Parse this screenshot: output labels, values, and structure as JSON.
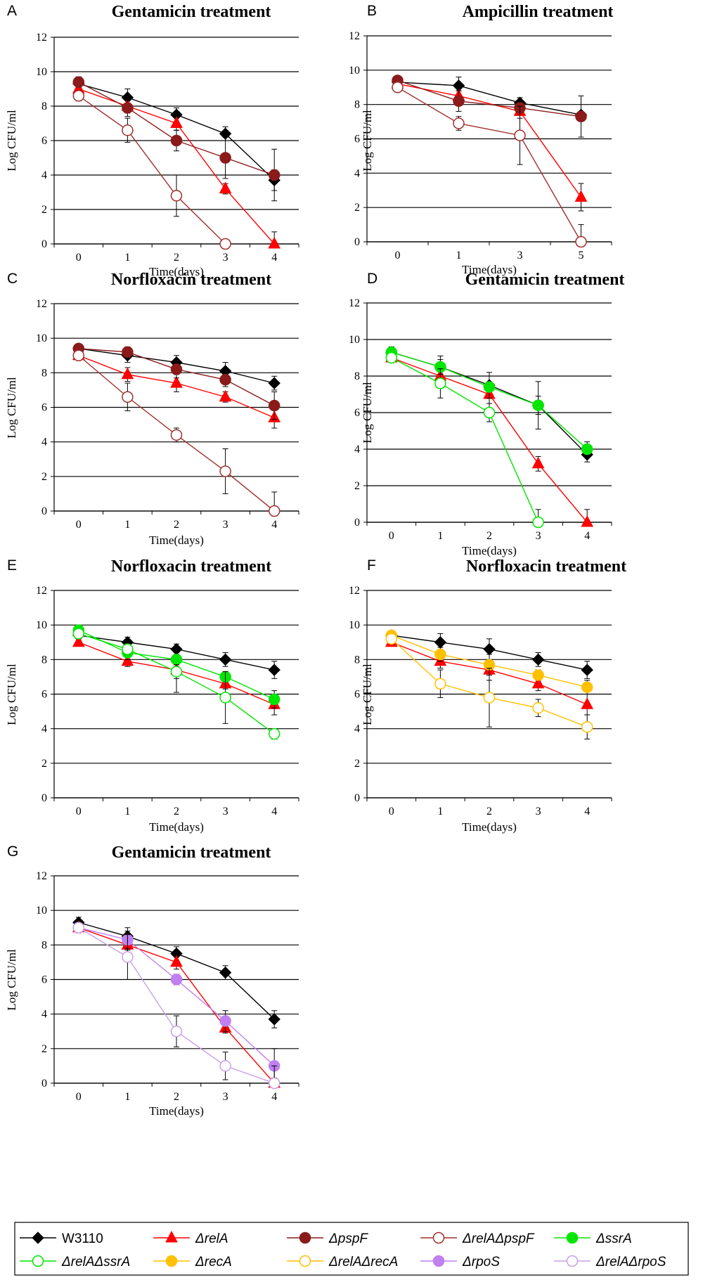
{
  "colors": {
    "W3110": "#000000",
    "relA": "#ff0000",
    "pspF": "#8b1a1a",
    "relApspF": "#a0302e",
    "ssrA": "#00e600",
    "relAssrA": "#00e600",
    "recA": "#ffc000",
    "relArecA": "#ffc000",
    "rpoS": "#c080f0",
    "relArpoS": "#c8a0ea"
  },
  "legend": {
    "items": [
      {
        "key": "W3110",
        "label": "W3110",
        "marker": "diamond",
        "filled": true
      },
      {
        "key": "relA",
        "label": "ΔrelA",
        "marker": "triangle",
        "filled": true
      },
      {
        "key": "pspF",
        "label": "ΔpspF",
        "marker": "circle",
        "filled": true
      },
      {
        "key": "relApspF",
        "label": "ΔrelAΔpspF",
        "marker": "circle",
        "filled": false
      },
      {
        "key": "ssrA",
        "label": "ΔssrA",
        "marker": "circle",
        "filled": true
      },
      {
        "key": "relAssrA",
        "label": "ΔrelAΔssrA",
        "marker": "circle",
        "filled": false
      },
      {
        "key": "recA",
        "label": "ΔrecA",
        "marker": "circle",
        "filled": true
      },
      {
        "key": "relArecA",
        "label": "ΔrelAΔrecA",
        "marker": "circle",
        "filled": false
      },
      {
        "key": "rpoS",
        "label": "ΔrpoS",
        "marker": "circle",
        "filled": true
      },
      {
        "key": "relArpoS",
        "label": "ΔrelAΔrpoS",
        "marker": "circle",
        "filled": false
      }
    ]
  },
  "chart_data": [
    {
      "panel": "A",
      "type": "line",
      "title": "Gentamicin treatment",
      "xlabel": "Time(days)",
      "ylabel": "Log CFU/ml",
      "categories": [
        "0",
        "1",
        "2",
        "3",
        "4"
      ],
      "ylim": [
        0,
        12
      ],
      "yticks": [
        0,
        2,
        4,
        6,
        8,
        10,
        12
      ],
      "series": [
        {
          "key": "W3110",
          "values": [
            9.3,
            8.5,
            7.5,
            6.4,
            3.7
          ],
          "err": [
            0.4,
            0.5,
            0.4,
            0.4,
            0.6
          ]
        },
        {
          "key": "relA",
          "values": [
            9.0,
            8.0,
            7.0,
            3.2,
            0.0
          ],
          "err": [
            0.3,
            0.4,
            0.4,
            0.3,
            0.7
          ]
        },
        {
          "key": "pspF",
          "values": [
            9.4,
            7.9,
            6.0,
            5.0,
            4.0
          ],
          "err": [
            0.3,
            0.5,
            0.6,
            1.2,
            1.5
          ]
        },
        {
          "key": "relApspF",
          "values": [
            8.6,
            6.6,
            2.8,
            0.0,
            null
          ],
          "err": [
            0.3,
            0.7,
            1.2,
            0,
            0
          ]
        }
      ]
    },
    {
      "panel": "B",
      "type": "line",
      "title": "Ampicillin treatment",
      "xlabel": "Time(days)",
      "ylabel": "Log CFU/ml",
      "categories": [
        "0",
        "1",
        "3",
        "5"
      ],
      "ylim": [
        0,
        12
      ],
      "yticks": [
        0,
        2,
        4,
        6,
        8,
        10,
        12
      ],
      "series": [
        {
          "key": "W3110",
          "values": [
            9.3,
            9.1,
            8.1,
            7.4
          ],
          "err": [
            0.2,
            0.5,
            0.3,
            0.2
          ]
        },
        {
          "key": "relA",
          "values": [
            9.2,
            8.5,
            7.6,
            2.6
          ],
          "err": [
            0.2,
            0.3,
            0.4,
            0.8
          ]
        },
        {
          "key": "pspF",
          "values": [
            9.4,
            8.2,
            7.8,
            7.3
          ],
          "err": [
            0.2,
            0.6,
            0.3,
            1.2
          ]
        },
        {
          "key": "relApspF",
          "values": [
            9.0,
            6.9,
            6.2,
            0.0
          ],
          "err": [
            0.2,
            0.4,
            1.7,
            1.0
          ]
        }
      ]
    },
    {
      "panel": "C",
      "type": "line",
      "title": "Norfloxacin treatment",
      "xlabel": "Time(days)",
      "ylabel": "Log CFU/ml",
      "categories": [
        "0",
        "1",
        "2",
        "3",
        "4"
      ],
      "ylim": [
        0,
        12
      ],
      "yticks": [
        0,
        2,
        4,
        6,
        8,
        10,
        12
      ],
      "series": [
        {
          "key": "W3110",
          "values": [
            9.4,
            9.0,
            8.6,
            8.1,
            7.4
          ],
          "err": [
            0.2,
            0.4,
            0.4,
            0.5,
            0.4
          ]
        },
        {
          "key": "relA",
          "values": [
            9.0,
            7.9,
            7.4,
            6.6,
            5.4
          ],
          "err": [
            0.2,
            0.4,
            0.5,
            0.3,
            0.6
          ]
        },
        {
          "key": "pspF",
          "values": [
            9.4,
            9.2,
            8.2,
            7.6,
            6.1
          ],
          "err": [
            0.2,
            0.3,
            0.5,
            0.4,
            0.8
          ]
        },
        {
          "key": "relApspF",
          "values": [
            9.0,
            6.6,
            4.4,
            2.3,
            0.0
          ],
          "err": [
            0.2,
            0.8,
            0.4,
            1.3,
            1.1
          ]
        }
      ]
    },
    {
      "panel": "D",
      "type": "line",
      "title": "Gentamicin treatment",
      "xlabel": "Time(days)",
      "ylabel": "Log CFU/ml",
      "categories": [
        "0",
        "1",
        "2",
        "3",
        "4"
      ],
      "ylim": [
        0,
        12
      ],
      "yticks": [
        0,
        2,
        4,
        6,
        8,
        10,
        12
      ],
      "series": [
        {
          "key": "W3110",
          "values": [
            9.3,
            8.5,
            7.5,
            6.4,
            3.7
          ],
          "err": [
            0.3,
            0.6,
            0.7,
            1.3,
            0.4
          ]
        },
        {
          "key": "relA",
          "values": [
            9.0,
            8.0,
            7.0,
            3.2,
            0.0
          ],
          "err": [
            0.2,
            0.3,
            0.5,
            0.4,
            0.7
          ]
        },
        {
          "key": "ssrA",
          "values": [
            9.3,
            8.5,
            7.4,
            6.4,
            4.0
          ],
          "err": [
            0.2,
            0.4,
            0.6,
            0.5,
            0.4
          ]
        },
        {
          "key": "relAssrA",
          "values": [
            9.0,
            7.6,
            6.0,
            0.0,
            null
          ],
          "err": [
            0.2,
            0.8,
            0.5,
            0.7,
            0
          ]
        }
      ]
    },
    {
      "panel": "E",
      "type": "line",
      "title": "Norfloxacin treatment",
      "xlabel": "Time(days)",
      "ylabel": "Log CFU/ml",
      "categories": [
        "0",
        "1",
        "2",
        "3",
        "4"
      ],
      "ylim": [
        0,
        12
      ],
      "yticks": [
        0,
        2,
        4,
        6,
        8,
        10,
        12
      ],
      "series": [
        {
          "key": "W3110",
          "values": [
            9.4,
            9.0,
            8.6,
            8.0,
            7.4
          ],
          "err": [
            0.2,
            0.3,
            0.3,
            0.4,
            0.5
          ]
        },
        {
          "key": "relA",
          "values": [
            9.0,
            7.9,
            7.4,
            6.6,
            5.4
          ],
          "err": [
            0.2,
            0.3,
            1.3,
            0.3,
            0.6
          ]
        },
        {
          "key": "ssrA",
          "values": [
            9.7,
            8.4,
            8.0,
            7.0,
            5.7
          ],
          "err": [
            0.2,
            0.4,
            0.4,
            0.3,
            0.5
          ]
        },
        {
          "key": "relAssrA",
          "values": [
            9.5,
            8.6,
            7.3,
            5.8,
            3.7
          ],
          "err": [
            0.2,
            0.3,
            0.4,
            1.5,
            0.3
          ]
        }
      ]
    },
    {
      "panel": "F",
      "type": "line",
      "title": "Norfloxacin treatment",
      "xlabel": "Time(days)",
      "ylabel": "Log CFU/ml",
      "categories": [
        "0",
        "1",
        "2",
        "3",
        "4"
      ],
      "ylim": [
        0,
        12
      ],
      "yticks": [
        0,
        2,
        4,
        6,
        8,
        10,
        12
      ],
      "series": [
        {
          "key": "W3110",
          "values": [
            9.4,
            9.0,
            8.6,
            8.0,
            7.4
          ],
          "err": [
            0.2,
            0.5,
            0.6,
            0.4,
            0.5
          ]
        },
        {
          "key": "relA",
          "values": [
            9.0,
            7.9,
            7.4,
            6.6,
            5.4
          ],
          "err": [
            0.2,
            0.4,
            0.6,
            0.4,
            0.6
          ]
        },
        {
          "key": "recA",
          "values": [
            9.4,
            8.3,
            7.7,
            7.1,
            6.4
          ],
          "err": [
            0.2,
            0.4,
            0.6,
            0.3,
            0.4
          ]
        },
        {
          "key": "relArecA",
          "values": [
            9.2,
            6.6,
            5.8,
            5.2,
            4.1
          ],
          "err": [
            0.2,
            0.8,
            1.7,
            0.5,
            0.7
          ]
        }
      ]
    },
    {
      "panel": "G",
      "type": "line",
      "title": "Gentamicin treatment",
      "xlabel": "Time(days)",
      "ylabel": "Log CFU/ml",
      "categories": [
        "0",
        "1",
        "2",
        "3",
        "4"
      ],
      "ylim": [
        0,
        12
      ],
      "yticks": [
        0,
        2,
        4,
        6,
        8,
        10,
        12
      ],
      "series": [
        {
          "key": "W3110",
          "values": [
            9.3,
            8.5,
            7.5,
            6.4,
            3.7
          ],
          "err": [
            0.3,
            0.5,
            0.4,
            0.4,
            0.5
          ]
        },
        {
          "key": "relA",
          "values": [
            9.0,
            8.0,
            7.0,
            3.2,
            0.0
          ],
          "err": [
            0.2,
            0.3,
            0.4,
            0.3,
            0.3
          ]
        },
        {
          "key": "rpoS",
          "values": [
            9.0,
            8.3,
            6.0,
            3.6,
            1.0
          ],
          "err": [
            0.2,
            0.5,
            0.3,
            0.6,
            1.0
          ]
        },
        {
          "key": "relArpoS",
          "values": [
            9.0,
            7.3,
            3.0,
            1.0,
            0.0
          ],
          "err": [
            0.3,
            1.3,
            0.9,
            0.8,
            1.0
          ]
        }
      ]
    }
  ]
}
